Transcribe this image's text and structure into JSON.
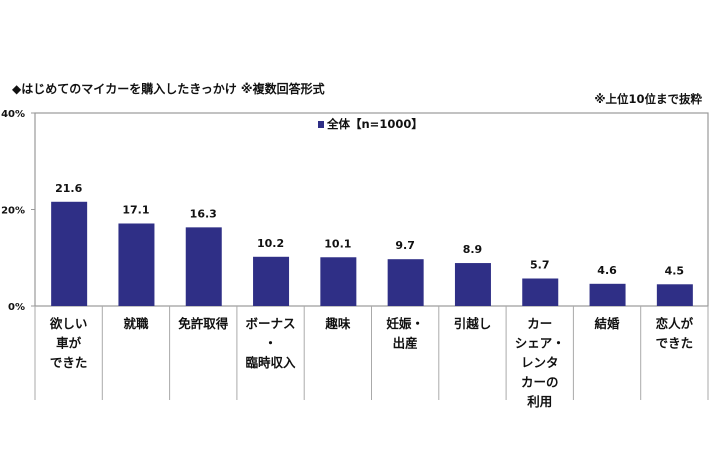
{
  "chart_data": {
    "type": "bar",
    "title": "◆はじめてのマイカーを購入したきっかけ ※複数回答形式",
    "note": "※上位10位まで抜粋",
    "categories": [
      [
        "欲しい",
        "車が",
        "できた"
      ],
      [
        "就職"
      ],
      [
        "免許取得"
      ],
      [
        "ボーナス",
        "・",
        "臨時収入"
      ],
      [
        "趣味"
      ],
      [
        "妊娠・",
        "出産"
      ],
      [
        "引越し"
      ],
      [
        "カー",
        "シェア・",
        "レンタ",
        "カーの",
        "利用"
      ],
      [
        "結婚"
      ],
      [
        "恋人が",
        "できた"
      ]
    ],
    "series": [
      {
        "name": "全体【n=1000】",
        "values": [
          21.6,
          17.1,
          16.3,
          10.2,
          10.1,
          9.7,
          8.9,
          5.7,
          4.6,
          4.5
        ],
        "color": "#2f2f86"
      }
    ],
    "ylim": [
      0,
      40
    ],
    "yticks": [
      0,
      20,
      40
    ],
    "ytick_labels": [
      "0%",
      "20%",
      "40%"
    ],
    "grid": false,
    "legend_placement": "top-center"
  }
}
